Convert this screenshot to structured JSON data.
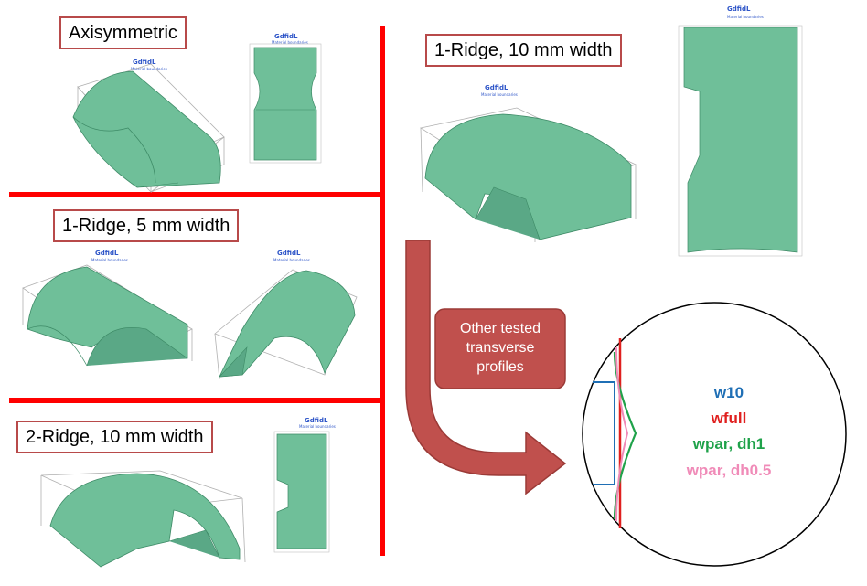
{
  "panels": {
    "axisymmetric": {
      "label": "Axisymmetric"
    },
    "ridge1_5mm": {
      "label": "1-Ridge, 5 mm width"
    },
    "ridge2_10mm": {
      "label": "2-Ridge, 10 mm width"
    },
    "ridge1_10mm": {
      "label": "1-Ridge, 10 mm width"
    }
  },
  "plot_header": {
    "title": "GdfidL",
    "subtitle": "Material boundaries"
  },
  "callout": {
    "text_line1": "Other tested",
    "text_line2": "transverse",
    "text_line3": "profiles"
  },
  "legend": {
    "items": [
      {
        "label": "w10",
        "color": "#1f6fb5"
      },
      {
        "label": "wfull",
        "color": "#e0201f"
      },
      {
        "label": "wpar, dh1",
        "color": "#1fa24a"
      },
      {
        "label": "wpar, dh0.5",
        "color": "#f08bb8"
      }
    ]
  },
  "colors": {
    "divider": "#ff0000",
    "box_border": "#b84a4a",
    "callout_fill": "#c0504d",
    "shape_fill": "#6fbf99",
    "shape_edge": "#3d8a66"
  }
}
